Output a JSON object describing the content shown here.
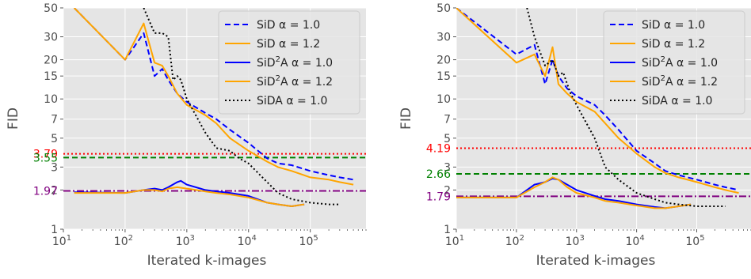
{
  "chart_data": [
    {
      "type": "line",
      "xlabel": "Iterated k-images",
      "ylabel": "FID",
      "x_scale": "log",
      "y_scale": "log",
      "xlim": [
        10,
        800000
      ],
      "ylim": [
        1,
        50
      ],
      "x_ticks": [
        {
          "value": 10,
          "base": "10",
          "exp": "1"
        },
        {
          "value": 100,
          "base": "10",
          "exp": "2"
        },
        {
          "value": 1000,
          "base": "10",
          "exp": "3"
        },
        {
          "value": 10000,
          "base": "10",
          "exp": "4"
        },
        {
          "value": 100000,
          "base": "10",
          "exp": "5"
        }
      ],
      "y_ticks": [
        {
          "value": 1,
          "label": "1"
        },
        {
          "value": 2,
          "label": "2"
        },
        {
          "value": 3,
          "label": "3"
        },
        {
          "value": 5,
          "label": "5"
        },
        {
          "value": 7,
          "label": "7"
        },
        {
          "value": 10,
          "label": "10"
        },
        {
          "value": 15,
          "label": "15"
        },
        {
          "value": 20,
          "label": "20"
        },
        {
          "value": 30,
          "label": "30"
        },
        {
          "value": 50,
          "label": "50"
        }
      ],
      "hlines": [
        {
          "value": 3.79,
          "label": "3.79",
          "color": "#ff0000",
          "style": "dotted"
        },
        {
          "value": 3.55,
          "label": "3.55",
          "color": "#008000",
          "style": "dashed"
        },
        {
          "value": 1.97,
          "label": "1.97",
          "color": "#800080",
          "style": "dashdot"
        }
      ],
      "legend_position": "upper-right",
      "grid": true,
      "series": [
        {
          "name": "SiD",
          "sub": "",
          "alpha": "α = 1.0",
          "color": "#0000ff",
          "style": "dashed",
          "x": [
            15,
            100,
            200,
            300,
            400,
            500,
            700,
            1000,
            2000,
            3000,
            5000,
            10000,
            20000,
            30000,
            50000,
            100000,
            200000,
            300000,
            500000
          ],
          "y": [
            50,
            20,
            32,
            15,
            17,
            14,
            11,
            9.5,
            7.8,
            7,
            5.8,
            4.6,
            3.5,
            3.2,
            3.1,
            2.8,
            2.6,
            2.5,
            2.4
          ]
        },
        {
          "name": "SiD",
          "sub": "",
          "alpha": "α = 1.2",
          "color": "#ffa500",
          "style": "solid",
          "x": [
            15,
            100,
            200,
            300,
            400,
            500,
            700,
            1000,
            2000,
            3000,
            5000,
            10000,
            20000,
            30000,
            50000,
            100000,
            200000,
            300000,
            500000
          ],
          "y": [
            50,
            20,
            38,
            19,
            18,
            15,
            11,
            9,
            7.5,
            6.5,
            5,
            4,
            3.3,
            3,
            2.8,
            2.5,
            2.4,
            2.3,
            2.2
          ]
        },
        {
          "name": "SiD",
          "sub": "2",
          "alpha": "A α = 1.0",
          "color": "#0000ff",
          "style": "solid",
          "x": [
            15,
            100,
            200,
            300,
            400,
            500,
            700,
            800,
            1000,
            2000,
            3000,
            5000,
            10000,
            20000,
            30000,
            50000,
            80000
          ],
          "y": [
            1.92,
            1.9,
            2.0,
            2.05,
            2.0,
            2.1,
            2.3,
            2.35,
            2.2,
            2.0,
            1.95,
            1.9,
            1.8,
            1.6,
            1.55,
            1.5,
            1.55
          ]
        },
        {
          "name": "SiD",
          "sub": "2",
          "alpha": "A α = 1.2",
          "color": "#ffa500",
          "style": "solid",
          "x": [
            15,
            100,
            200,
            300,
            400,
            500,
            700,
            1000,
            2000,
            3000,
            5000,
            10000,
            20000,
            30000,
            50000,
            80000
          ],
          "y": [
            1.9,
            1.9,
            2.0,
            2.0,
            1.95,
            2.05,
            2.1,
            2.05,
            1.95,
            1.9,
            1.85,
            1.75,
            1.6,
            1.55,
            1.5,
            1.55
          ]
        },
        {
          "name": "SiDA",
          "sub": "",
          "alpha": "α = 1.0",
          "color": "#000000",
          "style": "dotted",
          "x": [
            200,
            300,
            400,
            500,
            600,
            700,
            800,
            1000,
            2000,
            3000,
            5000,
            7000,
            10000,
            20000,
            30000,
            50000,
            100000,
            200000,
            300000
          ],
          "y": [
            50,
            32,
            32,
            30,
            14,
            15,
            14,
            10,
            5.5,
            4.2,
            4,
            3.5,
            3.2,
            2.3,
            1.9,
            1.7,
            1.6,
            1.55,
            1.55
          ]
        }
      ]
    },
    {
      "type": "line",
      "xlabel": "Iterated k-images",
      "ylabel": "FID",
      "x_scale": "log",
      "y_scale": "log",
      "xlim": [
        10,
        800000
      ],
      "ylim": [
        1,
        50
      ],
      "x_ticks": [
        {
          "value": 10,
          "base": "10",
          "exp": "1"
        },
        {
          "value": 100,
          "base": "10",
          "exp": "2"
        },
        {
          "value": 1000,
          "base": "10",
          "exp": "3"
        },
        {
          "value": 10000,
          "base": "10",
          "exp": "4"
        },
        {
          "value": 100000,
          "base": "10",
          "exp": "5"
        }
      ],
      "y_ticks": [
        {
          "value": 1,
          "label": "1"
        },
        {
          "value": 2,
          "label": "2"
        },
        {
          "value": 3,
          "label": "3"
        },
        {
          "value": 5,
          "label": "5"
        },
        {
          "value": 7,
          "label": "7"
        },
        {
          "value": 10,
          "label": "10"
        },
        {
          "value": 15,
          "label": "15"
        },
        {
          "value": 20,
          "label": "20"
        },
        {
          "value": 30,
          "label": "30"
        },
        {
          "value": 50,
          "label": "50"
        }
      ],
      "hlines": [
        {
          "value": 4.19,
          "label": "4.19",
          "color": "#ff0000",
          "style": "dotted"
        },
        {
          "value": 2.66,
          "label": "2.66",
          "color": "#008000",
          "style": "dashed"
        },
        {
          "value": 1.79,
          "label": "1.79",
          "color": "#800080",
          "style": "dashdot"
        }
      ],
      "legend_position": "upper-right",
      "grid": true,
      "series": [
        {
          "name": "SiD",
          "sub": "",
          "alpha": "α = 1.0",
          "color": "#0000ff",
          "style": "dashed",
          "x": [
            10,
            100,
            200,
            300,
            400,
            500,
            700,
            1000,
            2000,
            3000,
            5000,
            10000,
            20000,
            30000,
            50000,
            100000,
            200000,
            300000,
            500000
          ],
          "y": [
            50,
            22,
            26,
            13,
            20,
            15,
            12,
            10.5,
            9,
            7.5,
            5.8,
            4,
            3.2,
            2.8,
            2.6,
            2.4,
            2.2,
            2.1,
            2.0
          ]
        },
        {
          "name": "SiD",
          "sub": "",
          "alpha": "α = 1.2",
          "color": "#ffa500",
          "style": "solid",
          "x": [
            10,
            100,
            200,
            300,
            400,
            500,
            700,
            1000,
            2000,
            3000,
            5000,
            10000,
            20000,
            30000,
            50000,
            100000,
            200000,
            300000,
            500000
          ],
          "y": [
            50,
            19,
            22,
            15,
            25,
            13,
            11,
            9.5,
            8,
            6.5,
            5,
            3.8,
            3,
            2.7,
            2.5,
            2.3,
            2.1,
            2.0,
            1.9
          ]
        },
        {
          "name": "SiD",
          "sub": "2",
          "alpha": "A α = 1.0",
          "color": "#0000ff",
          "style": "solid",
          "x": [
            10,
            100,
            200,
            300,
            400,
            500,
            700,
            1000,
            2000,
            3000,
            5000,
            10000,
            20000,
            30000,
            50000,
            80000
          ],
          "y": [
            1.75,
            1.75,
            2.2,
            2.3,
            2.45,
            2.4,
            2.2,
            2.0,
            1.8,
            1.7,
            1.65,
            1.55,
            1.48,
            1.45,
            1.5,
            1.55
          ]
        },
        {
          "name": "SiD",
          "sub": "2",
          "alpha": "A α = 1.2",
          "color": "#ffa500",
          "style": "solid",
          "x": [
            10,
            100,
            200,
            300,
            400,
            500,
            700,
            1000,
            2000,
            3000,
            5000,
            10000,
            20000,
            30000,
            50000,
            80000
          ],
          "y": [
            1.75,
            1.75,
            2.1,
            2.3,
            2.5,
            2.4,
            2.1,
            1.9,
            1.75,
            1.65,
            1.6,
            1.52,
            1.45,
            1.45,
            1.5,
            1.55
          ]
        },
        {
          "name": "SiDA",
          "sub": "",
          "alpha": "α = 1.0",
          "color": "#000000",
          "style": "dotted",
          "x": [
            150,
            200,
            300,
            400,
            500,
            600,
            700,
            800,
            1000,
            2000,
            3000,
            5000,
            10000,
            20000,
            30000,
            50000,
            100000,
            200000,
            300000
          ],
          "y": [
            50,
            30,
            18,
            20,
            15,
            16,
            13,
            11,
            9,
            5,
            3,
            2.4,
            1.9,
            1.7,
            1.6,
            1.55,
            1.5,
            1.5,
            1.5
          ]
        }
      ]
    }
  ]
}
